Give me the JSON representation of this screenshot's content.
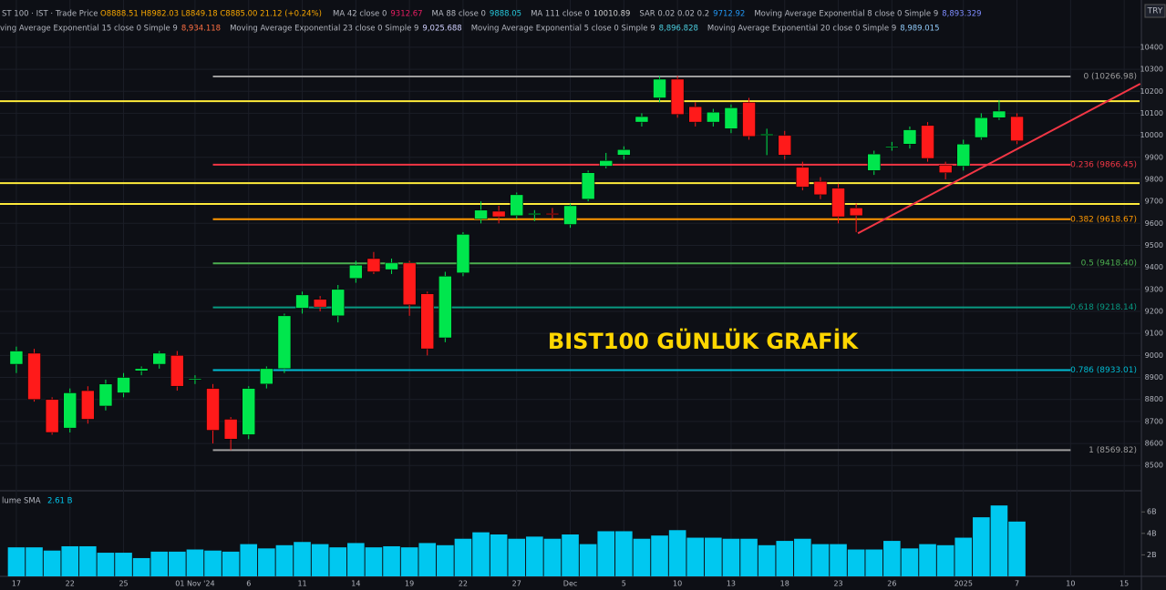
{
  "chart_data": {
    "type": "candlestick",
    "symbol": "ST 100 · IST · Trade Price",
    "ohlc_text": "O8888.51 H8982.03 L8849.18 C8885.00 21.12 (+0.24%)",
    "currency": "TRY",
    "title": "BIST100 GÜNLÜK GRAFİK",
    "indicators_row1": [
      {
        "name": "MA 42 close 0",
        "value": "9312.67",
        "color": "#e91e63"
      },
      {
        "name": "MA 88 close 0",
        "value": "9888.05",
        "color": "#26c6da"
      },
      {
        "name": "MA 111 close 0",
        "value": "10010.89",
        "color": "#cfcfcf"
      },
      {
        "name": "SAR 0.02 0.02 0.2",
        "value": "9712.92",
        "color": "#2196f3"
      },
      {
        "name": "Moving Average Exponential 8 close 0 Simple 9",
        "value": "8,893.329",
        "color": "#7e8cff"
      }
    ],
    "indicators_row2": [
      {
        "name": "ving Average Exponential 15 close 0 Simple 9",
        "value": "8,934.118",
        "color": "#ff7043"
      },
      {
        "name": "Moving Average Exponential 23 close 0 Simple 9",
        "value": "9,025.688",
        "color": "#d0d0ff"
      },
      {
        "name": "Moving Average Exponential 5 close 0 Simple 9",
        "value": "8,896.828",
        "color": "#4dd0e1"
      },
      {
        "name": "Moving Average Exponential 20 close 0 Simple 9",
        "value": "8,989.015",
        "color": "#90caf9"
      }
    ],
    "open": [
      8960,
      9010,
      8800,
      8670,
      8840,
      8770,
      8830,
      8930,
      8960,
      9000,
      8890,
      8850,
      8710,
      8640,
      8870,
      8940,
      9215,
      9255,
      9180,
      9350,
      9440,
      9390,
      9420,
      9280,
      9080,
      9375,
      9620,
      9655,
      9635,
      9640,
      9645,
      9595,
      9710,
      9860,
      9910,
      10060,
      10170,
      10255,
      10130,
      10060,
      10030,
      10150,
      10000,
      10000,
      9855,
      9790,
      9760,
      9670,
      9840,
      9945,
      9960,
      10045,
      9865,
      9860,
      9990,
      10080,
      10085
    ],
    "high": [
      9040,
      9030,
      8810,
      8850,
      8860,
      8890,
      8920,
      8950,
      9020,
      9020,
      8910,
      8870,
      8720,
      8860,
      8950,
      9190,
      9290,
      9270,
      9320,
      9430,
      9470,
      9440,
      9430,
      9290,
      9380,
      9560,
      9700,
      9680,
      9740,
      9660,
      9670,
      9690,
      9840,
      9920,
      9950,
      10100,
      10270,
      10270,
      10150,
      10120,
      10140,
      10170,
      10030,
      10020,
      9880,
      9810,
      9780,
      9690,
      9930,
      9970,
      10040,
      10060,
      9880,
      9980,
      10100,
      10160,
      10100
    ],
    "low": [
      8920,
      8790,
      8640,
      8650,
      8690,
      8750,
      8810,
      8910,
      8940,
      8840,
      8870,
      8600,
      8570,
      8620,
      8850,
      8920,
      9190,
      9200,
      9150,
      9330,
      9370,
      9370,
      9180,
      9000,
      9060,
      9360,
      9600,
      9600,
      9620,
      9610,
      9620,
      9580,
      9700,
      9850,
      9890,
      10040,
      10150,
      10080,
      10040,
      10040,
      10010,
      9980,
      9910,
      9890,
      9750,
      9710,
      9600,
      9560,
      9820,
      9930,
      9940,
      9880,
      9800,
      9840,
      9980,
      10070,
      9960
    ],
    "close": [
      9020,
      8800,
      8650,
      8830,
      8710,
      8870,
      8900,
      8940,
      9010,
      8860,
      8895,
      8660,
      8620,
      8850,
      8940,
      9180,
      9275,
      9220,
      9300,
      9410,
      9380,
      9420,
      9230,
      9030,
      9360,
      9550,
      9660,
      9630,
      9730,
      9645,
      9640,
      9680,
      9830,
      9885,
      9935,
      10085,
      10255,
      10095,
      10060,
      10105,
      10125,
      9995,
      10005,
      9910,
      9765,
      9730,
      9630,
      9635,
      9915,
      9950,
      10025,
      9895,
      9830,
      9960,
      10080,
      10110,
      9975
    ],
    "up_color": "#00e64d",
    "down_color": "#ff1a1a",
    "volume_label": "lume SMA",
    "volume_sma": "2.61 B",
    "volume": [
      2.7,
      2.7,
      2.4,
      2.8,
      2.8,
      2.2,
      2.2,
      1.7,
      2.3,
      2.3,
      2.5,
      2.4,
      2.3,
      3.0,
      2.6,
      2.9,
      3.2,
      3.0,
      2.7,
      3.1,
      2.7,
      2.8,
      2.7,
      3.1,
      2.9,
      3.5,
      4.1,
      3.9,
      3.5,
      3.7,
      3.5,
      3.9,
      3.0,
      4.2,
      4.2,
      3.5,
      3.8,
      4.3,
      3.6,
      3.6,
      3.5,
      3.5,
      2.9,
      3.3,
      3.5,
      3.0,
      3.0,
      2.5,
      2.5,
      3.3,
      2.6,
      3.0,
      2.9,
      3.6,
      5.5,
      6.6,
      5.1
    ],
    "volume_color": "#00c8f0",
    "vlim": [
      0,
      7.8
    ],
    "vticks": [
      {
        "value": 2,
        "label": "2B"
      },
      {
        "value": 4,
        "label": "4B"
      },
      {
        "value": 6,
        "label": "6B"
      }
    ],
    "ylim": [
      8410,
      10594
    ],
    "yticks": [
      8500,
      8600,
      8700,
      8800,
      8900,
      9000,
      9100,
      9200,
      9300,
      9400,
      9500,
      9600,
      9700,
      9800,
      9900,
      10000,
      10100,
      10200,
      10300,
      10400
    ],
    "xlim": [
      -0.66,
      62.86
    ],
    "xticks": [
      {
        "value": 0,
        "label": "17"
      },
      {
        "value": 3,
        "label": "22"
      },
      {
        "value": 6,
        "label": "25"
      },
      {
        "value": 10,
        "label": "01 Nov '24"
      },
      {
        "value": 13,
        "label": "6"
      },
      {
        "value": 16,
        "label": "11"
      },
      {
        "value": 19,
        "label": "14"
      },
      {
        "value": 22,
        "label": "19"
      },
      {
        "value": 25,
        "label": "22"
      },
      {
        "value": 28,
        "label": "27"
      },
      {
        "value": 31,
        "label": "Dec"
      },
      {
        "value": 34,
        "label": "5"
      },
      {
        "value": 37,
        "label": "10"
      },
      {
        "value": 40,
        "label": "13"
      },
      {
        "value": 43,
        "label": "18"
      },
      {
        "value": 46,
        "label": "23"
      },
      {
        "value": 49,
        "label": "26"
      },
      {
        "value": 53,
        "label": "2025"
      },
      {
        "value": 56,
        "label": "7"
      },
      {
        "value": 59,
        "label": "10"
      },
      {
        "value": 62,
        "label": "15"
      }
    ],
    "fib_levels": [
      {
        "label": "0 (10266.98)",
        "price": 10266.98,
        "color": "#9e9e9e"
      },
      {
        "label": "0.236 (9866.45)",
        "price": 9866.45,
        "color": "#f23645"
      },
      {
        "label": "0.382 (9618.67)",
        "price": 9618.67,
        "color": "#ff9800"
      },
      {
        "label": "0.5 (9418.40)",
        "price": 9418.4,
        "color": "#4caf50"
      },
      {
        "label": "0.618 (9218.14)",
        "price": 9218.14,
        "color": "#089981"
      },
      {
        "label": "0.786 (8933.01)",
        "price": 8933.01,
        "color": "#00bcd4"
      },
      {
        "label": "1 (8569.82)",
        "price": 8569.82,
        "color": "#9e9e9e"
      }
    ],
    "fib_x": [
      11,
      59
    ],
    "hlines": [
      10155,
      9783,
      9688
    ],
    "hline_color": "#ffeb3b",
    "trendline": {
      "x": [
        47.1,
        62.9
      ],
      "y": [
        9555,
        10234
      ],
      "color": "#f23645"
    }
  }
}
